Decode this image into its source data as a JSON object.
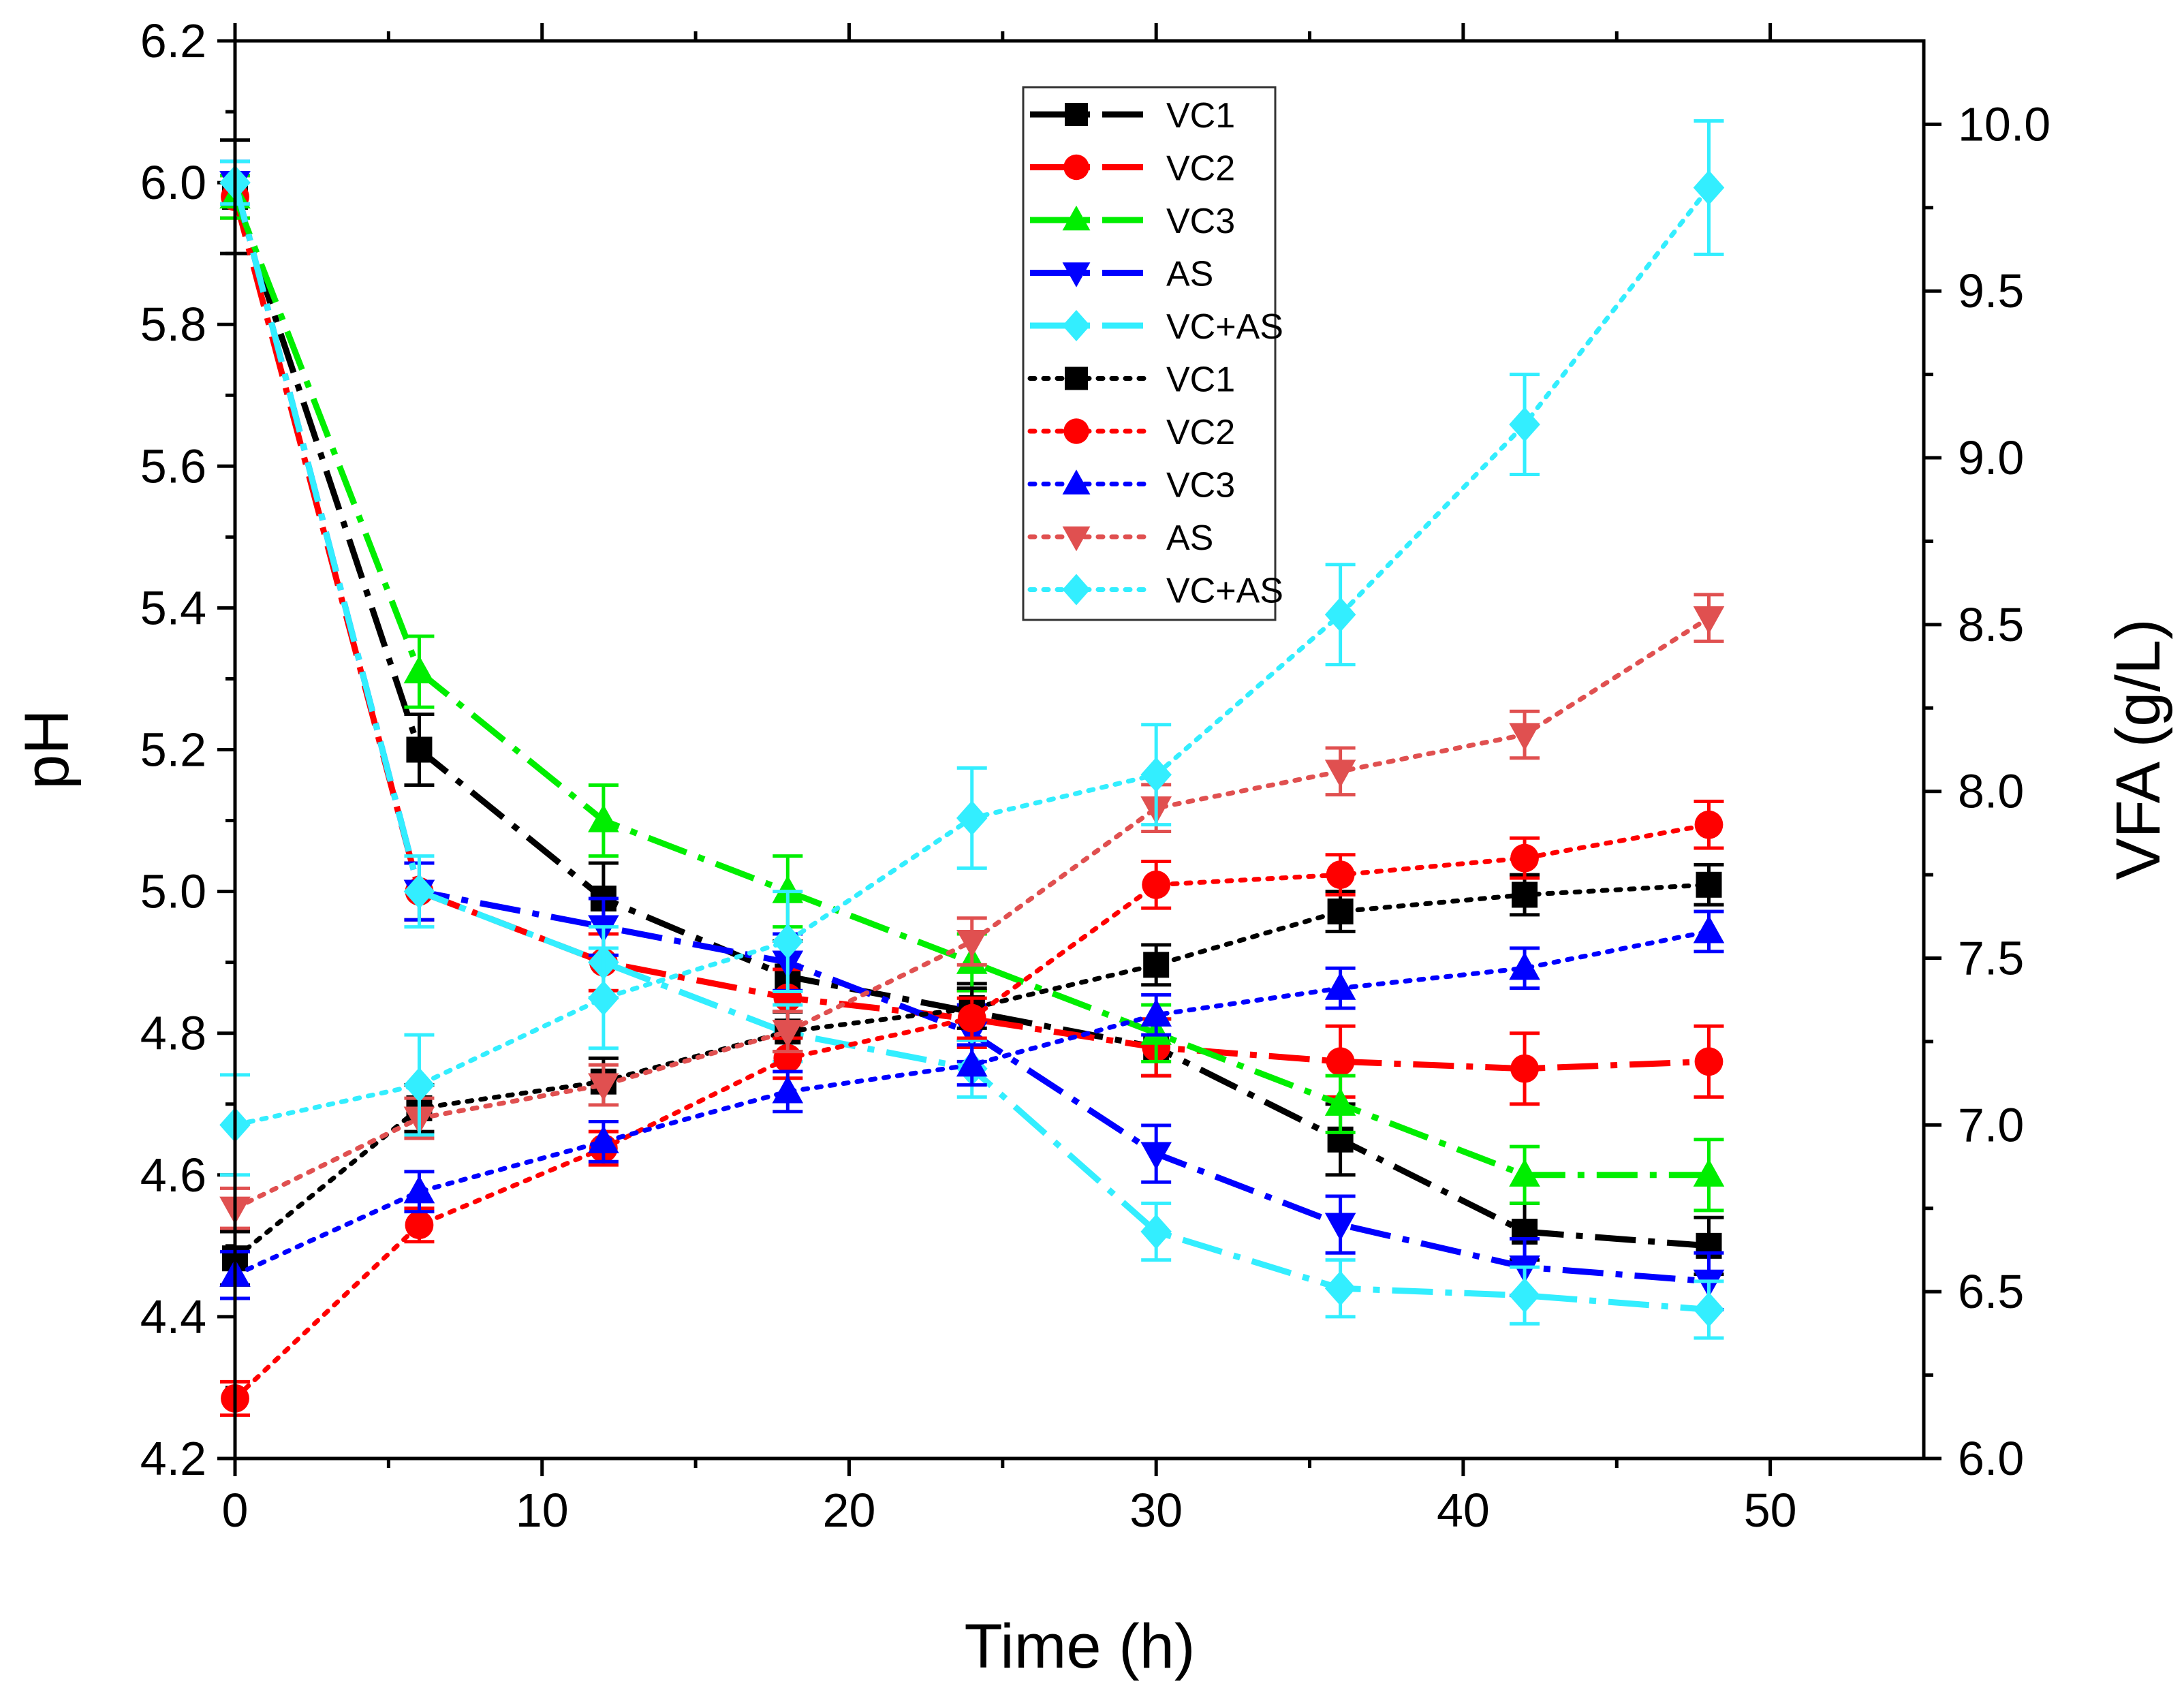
{
  "chart_data": {
    "type": "line",
    "xlabel": "Time (h)",
    "ylabel": "pH",
    "y2label": "VFA (g/L)",
    "xlim": [
      0,
      55
    ],
    "ylim": [
      4.2,
      6.2
    ],
    "y2lim": [
      6.0,
      10.25
    ],
    "x_ticks": [
      "0",
      "10",
      "20",
      "30",
      "40",
      "50"
    ],
    "y_ticks": [
      "4.2",
      "4.4",
      "4.6",
      "4.8",
      "5.0",
      "5.2",
      "5.4",
      "5.6",
      "5.8",
      "6.0",
      "6.2"
    ],
    "y2_ticks": [
      "6.0",
      "6.5",
      "7.0",
      "7.5",
      "8.0",
      "8.5",
      "9.0",
      "9.5",
      "10.0"
    ],
    "x": [
      0,
      6,
      12,
      18,
      24,
      30,
      36,
      42,
      48
    ],
    "series": [
      {
        "name": "VC1",
        "axis": "left",
        "line": "dashdot",
        "marker": "square",
        "color": "#000000",
        "values": [
          5.98,
          5.2,
          4.99,
          4.88,
          4.83,
          4.78,
          4.65,
          4.52,
          4.5
        ],
        "errors": [
          0.08,
          0.05,
          0.05,
          0.05,
          0.04,
          0.04,
          0.05,
          0.04,
          0.04
        ]
      },
      {
        "name": "VC2",
        "axis": "left",
        "line": "dashdot",
        "marker": "circle",
        "color": "#ff0000",
        "values": [
          5.98,
          5.0,
          4.9,
          4.85,
          4.82,
          4.78,
          4.76,
          4.75,
          4.76
        ],
        "errors": [
          0.03,
          0.04,
          0.04,
          0.04,
          0.04,
          0.04,
          0.05,
          0.05,
          0.05
        ]
      },
      {
        "name": "VC3",
        "axis": "left",
        "line": "dashdot",
        "marker": "triangle-up",
        "color": "#00ee00",
        "values": [
          5.98,
          5.31,
          5.1,
          5.0,
          4.9,
          4.8,
          4.7,
          4.6,
          4.6
        ],
        "errors": [
          0.03,
          0.05,
          0.05,
          0.05,
          0.04,
          0.04,
          0.04,
          0.04,
          0.05
        ]
      },
      {
        "name": "AS",
        "axis": "left",
        "line": "dashdot",
        "marker": "triangle-down",
        "color": "#0000ff",
        "values": [
          6.0,
          5.0,
          4.95,
          4.9,
          4.8,
          4.63,
          4.53,
          4.47,
          4.45
        ],
        "errors": [
          0.03,
          0.04,
          0.04,
          0.04,
          0.04,
          0.04,
          0.04,
          0.04,
          0.04
        ]
      },
      {
        "name": "VC+AS",
        "axis": "left",
        "line": "dashdot",
        "marker": "diamond",
        "color": "#33eeff",
        "values": [
          6.0,
          5.0,
          4.9,
          4.8,
          4.75,
          4.52,
          4.44,
          4.43,
          4.41
        ],
        "errors": [
          0.03,
          0.05,
          0.05,
          0.04,
          0.04,
          0.04,
          0.04,
          0.04,
          0.04
        ]
      },
      {
        "name": "VC1",
        "axis": "right",
        "line": "dotted",
        "marker": "square",
        "color": "#000000",
        "values": [
          6.6,
          7.05,
          7.13,
          7.28,
          7.35,
          7.48,
          7.64,
          7.69,
          7.72
        ],
        "errors": [
          0.08,
          0.07,
          0.07,
          0.06,
          0.06,
          0.06,
          0.06,
          0.06,
          0.06
        ]
      },
      {
        "name": "VC2",
        "axis": "right",
        "line": "dotted",
        "marker": "circle",
        "color": "#ff0000",
        "values": [
          6.18,
          6.7,
          6.93,
          7.2,
          7.32,
          7.72,
          7.75,
          7.8,
          7.9
        ],
        "errors": [
          0.05,
          0.05,
          0.05,
          0.06,
          0.06,
          0.07,
          0.06,
          0.06,
          0.07
        ]
      },
      {
        "name": "VC3",
        "axis": "right",
        "line": "dotted",
        "marker": "triangle-up",
        "color": "#0000ff",
        "values": [
          6.55,
          6.8,
          6.95,
          7.1,
          7.18,
          7.33,
          7.41,
          7.47,
          7.58
        ],
        "errors": [
          0.07,
          0.06,
          0.06,
          0.06,
          0.06,
          0.06,
          0.06,
          0.06,
          0.06
        ]
      },
      {
        "name": "AS",
        "axis": "right",
        "line": "dotted",
        "marker": "triangle-down",
        "color": "#e05050",
        "values": [
          6.75,
          7.02,
          7.12,
          7.28,
          7.55,
          7.95,
          8.06,
          8.17,
          8.52
        ],
        "errors": [
          0.06,
          0.06,
          0.06,
          0.06,
          0.07,
          0.07,
          0.07,
          0.07,
          0.07
        ]
      },
      {
        "name": "VC+AS",
        "axis": "right",
        "line": "dotted",
        "marker": "diamond",
        "color": "#33eeff",
        "values": [
          7.0,
          7.12,
          7.38,
          7.55,
          7.92,
          8.05,
          8.53,
          9.1,
          9.81
        ],
        "errors": [
          0.15,
          0.15,
          0.15,
          0.15,
          0.15,
          0.15,
          0.15,
          0.15,
          0.2
        ]
      }
    ],
    "legend_position": "top-center"
  }
}
